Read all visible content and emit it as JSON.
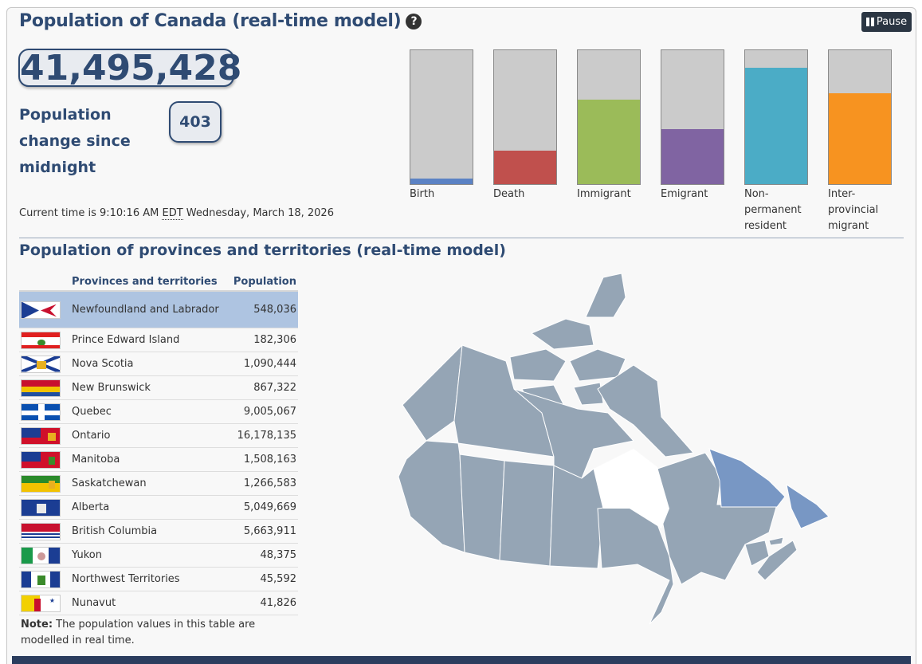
{
  "header": {
    "title": "Population of Canada (real-time model)",
    "help_icon": "question-circle-icon",
    "pause_label": "Pause",
    "pause_icon": "pause-icon"
  },
  "population": {
    "total": "41,495,428",
    "change_label": "Population change since midnight",
    "change_value": "403",
    "time_text": "Current time is 9:10:16 AM",
    "time_zone": "EDT",
    "time_date": "Wednesday, March 18, 2026"
  },
  "components": [
    {
      "label": "Birth",
      "level": 0.04,
      "color": "#5b82c4"
    },
    {
      "label": "Death",
      "level": 0.25,
      "color": "#c0504d"
    },
    {
      "label": "Immigrant",
      "level": 0.63,
      "color": "#9bbb59"
    },
    {
      "label": "Emigrant",
      "level": 0.41,
      "color": "#8064a2"
    },
    {
      "label": "Non-permanent resident",
      "level": 0.87,
      "color": "#4bacc6"
    },
    {
      "label": "Inter-provincial migrant",
      "level": 0.68,
      "color": "#f79320"
    }
  ],
  "provinces": {
    "title": "Population of provinces and territories (real-time model)",
    "col_name": "Provinces and territories",
    "col_pop": "Population",
    "rows": [
      {
        "name": "Newfoundland and Labrador",
        "pop": "548,036",
        "selected": true
      },
      {
        "name": "Prince Edward Island",
        "pop": "182,306"
      },
      {
        "name": "Nova Scotia",
        "pop": "1,090,444"
      },
      {
        "name": "New Brunswick",
        "pop": "867,322"
      },
      {
        "name": "Quebec",
        "pop": "9,005,067"
      },
      {
        "name": "Ontario",
        "pop": "16,178,135"
      },
      {
        "name": "Manitoba",
        "pop": "1,508,163"
      },
      {
        "name": "Saskatchewan",
        "pop": "1,266,583"
      },
      {
        "name": "Alberta",
        "pop": "5,049,669"
      },
      {
        "name": "British Columbia",
        "pop": "5,663,911"
      },
      {
        "name": "Yukon",
        "pop": "48,375"
      },
      {
        "name": "Northwest Territories",
        "pop": "45,592"
      },
      {
        "name": "Nunavut",
        "pop": "41,826"
      }
    ],
    "note_label": "Note:",
    "note_text": " The population values in this table are modelled in real time."
  },
  "colors": {
    "accent": "#2f4b73",
    "map_region": "#95a5b5",
    "map_selected": "#7897c4",
    "selected_row": "#aec4e1"
  }
}
